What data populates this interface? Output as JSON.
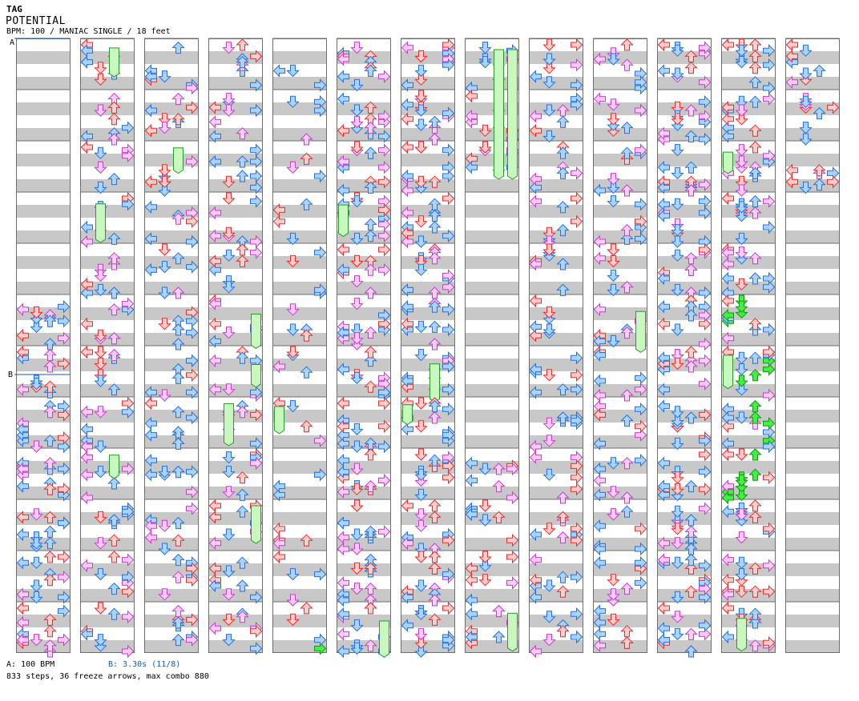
{
  "song": {
    "artist": "TAG",
    "title": "POTENTIAL",
    "info_line": "BPM: 100 / MANIAC SINGLE / 18 feet"
  },
  "markers": {
    "a": "A",
    "b": "B"
  },
  "footer": {
    "bpm_note": "A: 100 BPM",
    "stop_note": "B: 3.30s (11/8)",
    "stats": "833 steps, 36 freeze arrows, max combo 880"
  },
  "chart": {
    "columns": 13,
    "measures_per_column": 12,
    "lanes": 4,
    "freeze_arrow_count": 36
  },
  "colors": {
    "stripe": "#c8c8c8",
    "border": "#6e6e6e",
    "quarter_fill": "#ffcccc",
    "quarter_stroke": "#e03030",
    "eighth_fill": "#aad4ff",
    "eighth_stroke": "#2a6fd6",
    "sixteenth_fill": "#ffccff",
    "sixteenth_stroke": "#c040c0",
    "shock_fill": "#44ee44",
    "shock_stroke": "#119911",
    "freeze_fill": "#c8f8c0",
    "freeze_stroke": "#2a9a2a"
  },
  "icons": {
    "step": "arrow-icon",
    "hold": "freeze-arrow-icon",
    "bpm_marker": "bpm-marker-icon",
    "stop_marker": "stop-marker-icon"
  }
}
